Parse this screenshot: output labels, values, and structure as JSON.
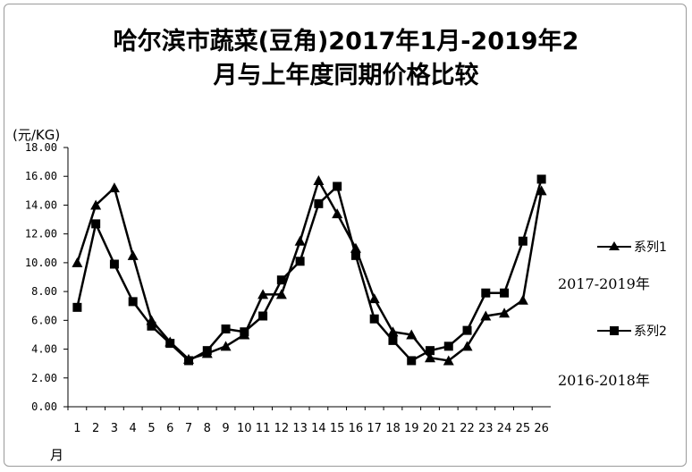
{
  "title_line1": "哈尔滨市蔬菜(豆角)2017年1月-2019年2",
  "title_line2": "月与上年度同期价格比较",
  "y_unit": "(元/KG)",
  "x_unit": "月",
  "legend": {
    "series1": "系列1",
    "series2": "系列2"
  },
  "annotations": {
    "series1_period": "2017-2019年",
    "series2_period": "2016-2018年"
  },
  "chart_data": {
    "type": "line",
    "categories": [
      "1",
      "2",
      "3",
      "4",
      "5",
      "6",
      "7",
      "8",
      "9",
      "10",
      "11",
      "12",
      "13",
      "14",
      "15",
      "16",
      "17",
      "18",
      "19",
      "20",
      "21",
      "22",
      "23",
      "24",
      "25",
      "26"
    ],
    "ylim": [
      0,
      18
    ],
    "ytick_labels": [
      "0.00",
      "2.00",
      "4.00",
      "6.00",
      "8.00",
      "10.00",
      "12.00",
      "14.00",
      "16.00",
      "18.00"
    ],
    "grid": false,
    "legend_position": "right",
    "series": [
      {
        "name": "系列1",
        "marker": "triangle",
        "values": [
          10.0,
          14.0,
          15.2,
          10.5,
          6.0,
          4.5,
          3.3,
          3.7,
          4.2,
          5.0,
          7.8,
          7.8,
          11.5,
          15.7,
          13.4,
          11.0,
          7.5,
          5.2,
          5.0,
          3.4,
          3.2,
          4.2,
          6.3,
          6.5,
          7.4,
          15.0
        ]
      },
      {
        "name": "系列2",
        "marker": "square",
        "values": [
          6.9,
          12.7,
          9.9,
          7.3,
          5.6,
          4.4,
          3.2,
          3.9,
          5.4,
          5.2,
          6.3,
          8.8,
          10.1,
          14.1,
          15.3,
          10.5,
          6.1,
          4.6,
          3.2,
          3.9,
          4.2,
          5.3,
          7.9,
          7.9,
          11.5,
          15.8
        ]
      }
    ]
  }
}
